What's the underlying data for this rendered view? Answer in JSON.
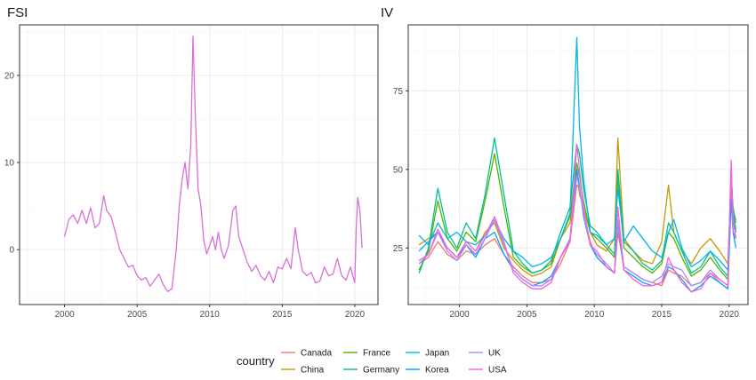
{
  "chart_data": [
    {
      "type": "line",
      "title": "FSI",
      "xlabel": "",
      "ylabel": "",
      "x_ticks": [
        2000,
        2005,
        2010,
        2015,
        2020
      ],
      "y_ticks": [
        0,
        10,
        20
      ],
      "xlim": [
        1996.9,
        2021.6
      ],
      "ylim": [
        -6.3,
        25.8
      ],
      "grid": true,
      "series": [
        {
          "color": "#DA70D6",
          "x": [
            2000.0,
            2000.3,
            2000.6,
            2000.9,
            2001.2,
            2001.5,
            2001.8,
            2002.1,
            2002.4,
            2002.7,
            2002.9,
            2003.2,
            2003.5,
            2003.8,
            2004.1,
            2004.4,
            2004.7,
            2005.0,
            2005.3,
            2005.6,
            2005.9,
            2006.2,
            2006.5,
            2006.8,
            2007.1,
            2007.4,
            2007.7,
            2007.9,
            2008.1,
            2008.3,
            2008.5,
            2008.7,
            2008.85,
            2009.0,
            2009.2,
            2009.4,
            2009.6,
            2009.8,
            2010.0,
            2010.2,
            2010.4,
            2010.6,
            2010.8,
            2011.0,
            2011.3,
            2011.6,
            2011.8,
            2012.0,
            2012.3,
            2012.6,
            2012.9,
            2013.2,
            2013.5,
            2013.8,
            2014.1,
            2014.4,
            2014.7,
            2015.0,
            2015.3,
            2015.6,
            2015.9,
            2016.1,
            2016.4,
            2016.7,
            2017.0,
            2017.3,
            2017.6,
            2017.9,
            2018.2,
            2018.5,
            2018.8,
            2019.1,
            2019.4,
            2019.7,
            2020.0,
            2020.1,
            2020.2,
            2020.35,
            2020.5
          ],
          "values": [
            1.5,
            3.5,
            4.0,
            3.0,
            4.5,
            3.0,
            4.8,
            2.5,
            3.0,
            6.2,
            4.5,
            3.8,
            2.0,
            0.0,
            -1.0,
            -2.0,
            -1.8,
            -3.0,
            -3.5,
            -3.2,
            -4.2,
            -3.5,
            -2.8,
            -4.0,
            -4.8,
            -4.5,
            0.0,
            5.0,
            8.0,
            10.0,
            7.0,
            12.0,
            24.5,
            16.0,
            7.0,
            5.0,
            1.0,
            -0.5,
            0.5,
            1.5,
            0.0,
            2.0,
            0.0,
            -1.0,
            0.5,
            4.5,
            5.0,
            1.5,
            0.0,
            -1.5,
            -2.5,
            -1.8,
            -3.0,
            -3.5,
            -2.5,
            -3.8,
            -2.0,
            -2.2,
            -1.0,
            -2.2,
            2.5,
            0.0,
            -2.5,
            -3.0,
            -2.6,
            -3.8,
            -3.6,
            -2.0,
            -3.0,
            -2.8,
            -1.0,
            -3.0,
            -3.5,
            -2.0,
            -3.8,
            2.5,
            6.0,
            4.5,
            0.2
          ]
        }
      ]
    },
    {
      "type": "line",
      "title": "IV",
      "xlabel": "",
      "ylabel": "",
      "x_ticks": [
        2000,
        2005,
        2010,
        2015,
        2020
      ],
      "y_ticks": [
        25,
        50,
        75
      ],
      "xlim": [
        1996.2,
        2021.4
      ],
      "ylim": [
        7.0,
        96.0
      ],
      "grid": true,
      "legend_title": "country",
      "legend_position": "bottom",
      "x": [
        1997.0,
        1997.7,
        1998.4,
        1999.1,
        1999.8,
        2000.5,
        2001.2,
        2001.9,
        2002.6,
        2003.3,
        2004.0,
        2004.7,
        2005.4,
        2006.1,
        2006.8,
        2007.5,
        2008.2,
        2008.7,
        2008.9,
        2009.2,
        2009.7,
        2010.2,
        2010.9,
        2011.5,
        2011.75,
        2012.2,
        2012.9,
        2013.6,
        2014.3,
        2015.0,
        2015.5,
        2015.9,
        2016.5,
        2017.2,
        2017.9,
        2018.6,
        2019.3,
        2019.9,
        2020.15,
        2020.3,
        2020.5
      ],
      "series": [
        {
          "name": "Canada",
          "color": "#F8766D",
          "values": [
            20,
            22,
            27,
            23,
            21,
            24,
            23,
            26,
            28,
            23,
            19,
            16,
            14,
            14,
            15,
            20,
            27,
            45,
            44,
            36,
            27,
            22,
            19,
            17,
            30,
            19,
            17,
            15,
            14,
            13,
            18,
            17,
            16,
            13,
            14,
            17,
            14,
            12,
            42,
            30,
            28
          ]
        },
        {
          "name": "China",
          "color": "#C49A00",
          "values": [
            26,
            28,
            30,
            25,
            22,
            27,
            24,
            30,
            33,
            25,
            21,
            18,
            16,
            17,
            19,
            28,
            33,
            50,
            42,
            38,
            30,
            26,
            24,
            28,
            60,
            28,
            24,
            21,
            20,
            27,
            45,
            30,
            24,
            20,
            25,
            28,
            24,
            20,
            45,
            38,
            33
          ]
        },
        {
          "name": "France",
          "color": "#53B400",
          "values": [
            18,
            24,
            40,
            28,
            24,
            30,
            27,
            40,
            55,
            38,
            22,
            19,
            17,
            18,
            20,
            28,
            35,
            52,
            48,
            40,
            30,
            28,
            25,
            22,
            48,
            25,
            22,
            19,
            17,
            20,
            30,
            28,
            22,
            16,
            18,
            22,
            18,
            15,
            48,
            35,
            30
          ]
        },
        {
          "name": "Germany",
          "color": "#00C094",
          "values": [
            17,
            25,
            44,
            30,
            25,
            33,
            28,
            42,
            60,
            42,
            24,
            20,
            17,
            18,
            21,
            30,
            38,
            58,
            55,
            44,
            32,
            30,
            26,
            23,
            50,
            27,
            24,
            20,
            18,
            21,
            33,
            30,
            24,
            17,
            19,
            24,
            19,
            16,
            50,
            36,
            31
          ]
        },
        {
          "name": "Japan",
          "color": "#00B6EB",
          "values": [
            29,
            26,
            33,
            28,
            30,
            27,
            26,
            29,
            34,
            28,
            24,
            22,
            19,
            20,
            22,
            28,
            36,
            92,
            64,
            47,
            30,
            29,
            26,
            28,
            44,
            27,
            32,
            28,
            24,
            22,
            30,
            34,
            25,
            19,
            21,
            24,
            21,
            18,
            48,
            36,
            34
          ]
        },
        {
          "name": "Korea",
          "color": "#06A4FF",
          "values": [
            24,
            27,
            30,
            25,
            22,
            26,
            22,
            28,
            30,
            23,
            18,
            15,
            13,
            14,
            16,
            22,
            28,
            50,
            45,
            35,
            26,
            22,
            19,
            17,
            33,
            18,
            16,
            14,
            13,
            14,
            19,
            18,
            15,
            11,
            13,
            16,
            14,
            12,
            40,
            30,
            25
          ]
        },
        {
          "name": "UK",
          "color": "#A58AFF",
          "values": [
            20,
            23,
            30,
            24,
            21,
            26,
            23,
            28,
            34,
            26,
            18,
            15,
            13,
            13,
            15,
            22,
            28,
            48,
            44,
            36,
            26,
            23,
            20,
            17,
            34,
            19,
            17,
            15,
            14,
            16,
            20,
            19,
            18,
            13,
            14,
            18,
            15,
            13,
            50,
            34,
            28
          ]
        },
        {
          "name": "USA",
          "color": "#FB61D7",
          "values": [
            21,
            23,
            31,
            25,
            22,
            27,
            24,
            29,
            35,
            27,
            17,
            14,
            12,
            12,
            14,
            22,
            27,
            58,
            50,
            38,
            26,
            24,
            19,
            17,
            38,
            18,
            15,
            13,
            13,
            14,
            22,
            18,
            14,
            11,
            12,
            17,
            15,
            13,
            53,
            30,
            29
          ]
        }
      ]
    }
  ]
}
